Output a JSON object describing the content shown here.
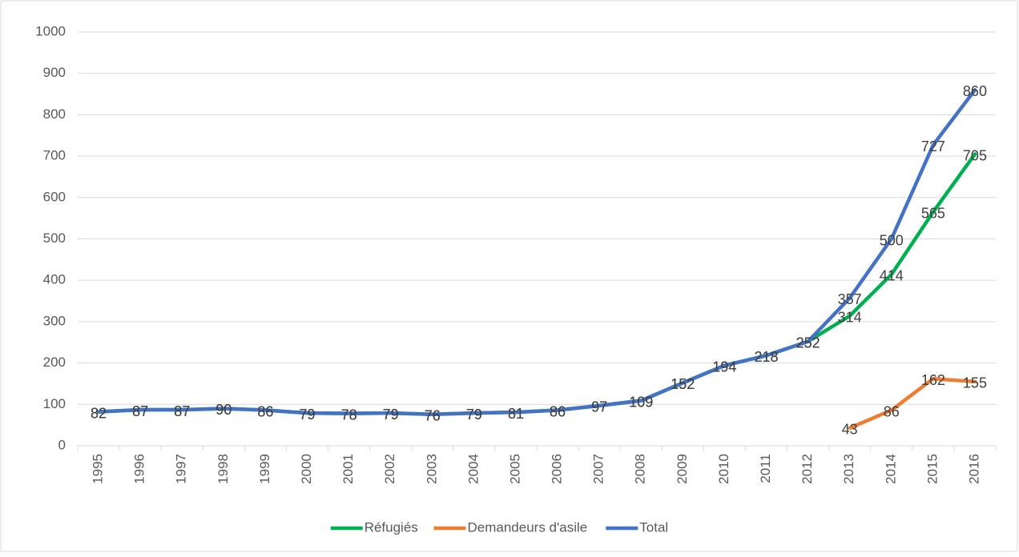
{
  "chart_data": {
    "type": "line",
    "categories": [
      "1995",
      "1996",
      "1997",
      "1998",
      "1999",
      "2000",
      "2001",
      "2002",
      "2003",
      "2004",
      "2005",
      "2006",
      "2007",
      "2008",
      "2009",
      "2010",
      "2011",
      "2012",
      "2013",
      "2014",
      "2015",
      "2016"
    ],
    "series": [
      {
        "name": "Réfugiés",
        "color": "#00b050",
        "values": [
          82,
          87,
          87,
          90,
          86,
          79,
          78,
          79,
          76,
          79,
          81,
          86,
          97,
          109,
          152,
          194,
          218,
          252,
          314,
          414,
          565,
          705
        ]
      },
      {
        "name": "Demandeurs d'asile",
        "color": "#ed7d31",
        "values": [
          null,
          null,
          null,
          null,
          null,
          null,
          null,
          null,
          null,
          null,
          null,
          null,
          null,
          null,
          null,
          null,
          null,
          null,
          43,
          86,
          162,
          155
        ]
      },
      {
        "name": "Total",
        "color": "#4472c4",
        "values": [
          82,
          87,
          87,
          90,
          86,
          79,
          78,
          79,
          76,
          79,
          81,
          86,
          97,
          109,
          152,
          194,
          218,
          252,
          357,
          500,
          727,
          860
        ]
      }
    ],
    "ylim": [
      0,
      1000
    ],
    "yticks": [
      0,
      100,
      200,
      300,
      400,
      500,
      600,
      700,
      800,
      900,
      1000
    ],
    "grid": true,
    "legend": "bottom"
  }
}
